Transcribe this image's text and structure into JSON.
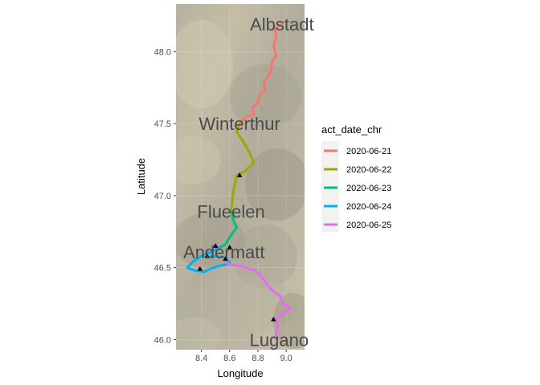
{
  "chart_data": {
    "type": "line",
    "title": "",
    "xlabel": "Longitude",
    "ylabel": "Latitude",
    "xlim": [
      8.22,
      9.13
    ],
    "ylim": [
      45.93,
      48.33
    ],
    "x_ticks": [
      8.4,
      8.6,
      8.8,
      9.0
    ],
    "x_tick_labels": [
      "8.4",
      "8.6",
      "8.8",
      "9.0"
    ],
    "y_ticks": [
      46.0,
      46.5,
      47.0,
      47.5,
      48.0
    ],
    "y_tick_labels": [
      "46.0",
      "46.5",
      "47.0",
      "47.5",
      "48.0"
    ],
    "grid": true,
    "background": "terrain map",
    "legend": {
      "title": "act_date_chr",
      "position": "right"
    },
    "series": [
      {
        "name": "2020-06-21",
        "color": "#F8766D",
        "points": [
          [
            8.97,
            48.19
          ],
          [
            8.92,
            48.16
          ],
          [
            8.93,
            48.1
          ],
          [
            8.91,
            48.04
          ],
          [
            8.93,
            47.97
          ],
          [
            8.9,
            47.93
          ],
          [
            8.89,
            47.86
          ],
          [
            8.87,
            47.82
          ],
          [
            8.84,
            47.79
          ],
          [
            8.85,
            47.73
          ],
          [
            8.81,
            47.7
          ],
          [
            8.8,
            47.64
          ],
          [
            8.76,
            47.61
          ],
          [
            8.77,
            47.56
          ],
          [
            8.72,
            47.55
          ],
          [
            8.67,
            47.5
          ]
        ]
      },
      {
        "name": "2020-06-22",
        "color": "#A3A500",
        "points": [
          [
            8.67,
            47.5
          ],
          [
            8.65,
            47.44
          ],
          [
            8.7,
            47.37
          ],
          [
            8.74,
            47.3
          ],
          [
            8.77,
            47.23
          ],
          [
            8.71,
            47.17
          ],
          [
            8.65,
            47.14
          ],
          [
            8.63,
            47.05
          ],
          [
            8.62,
            46.98
          ],
          [
            8.61,
            46.89
          ]
        ]
      },
      {
        "name": "2020-06-23",
        "color": "#00BF7D",
        "points": [
          [
            8.61,
            46.89
          ],
          [
            8.63,
            46.82
          ],
          [
            8.65,
            46.78
          ],
          [
            8.6,
            46.71
          ],
          [
            8.57,
            46.66
          ],
          [
            8.53,
            46.64
          ]
        ]
      },
      {
        "name": "2020-06-24",
        "color": "#00B0F6",
        "points": [
          [
            8.53,
            46.64
          ],
          [
            8.47,
            46.61
          ],
          [
            8.4,
            46.58
          ],
          [
            8.35,
            46.55
          ],
          [
            8.3,
            46.5
          ],
          [
            8.35,
            46.48
          ],
          [
            8.42,
            46.47
          ],
          [
            8.46,
            46.49
          ],
          [
            8.52,
            46.51
          ],
          [
            8.57,
            46.52
          ],
          [
            8.6,
            46.53
          ],
          [
            8.57,
            46.57
          ],
          [
            8.5,
            46.58
          ],
          [
            8.44,
            46.57
          ]
        ]
      },
      {
        "name": "2020-06-25",
        "color": "#E76BF3",
        "points": [
          [
            8.56,
            46.55
          ],
          [
            8.6,
            46.52
          ],
          [
            8.68,
            46.51
          ],
          [
            8.78,
            46.48
          ],
          [
            8.83,
            46.43
          ],
          [
            8.89,
            46.35
          ],
          [
            8.96,
            46.3
          ],
          [
            8.97,
            46.25
          ],
          [
            9.03,
            46.22
          ],
          [
            8.99,
            46.19
          ],
          [
            8.93,
            46.15
          ],
          [
            8.94,
            46.09
          ],
          [
            8.92,
            46.01
          ]
        ]
      }
    ],
    "markers": [
      [
        8.67,
        47.14
      ],
      [
        8.5,
        46.65
      ],
      [
        8.6,
        46.64
      ],
      [
        8.44,
        46.58
      ],
      [
        8.39,
        46.49
      ],
      [
        8.57,
        46.56
      ],
      [
        8.91,
        46.14
      ]
    ],
    "place_labels": [
      {
        "text": "Albstadt",
        "lon": 8.97,
        "lat": 48.19
      },
      {
        "text": "Winterthur",
        "lon": 8.67,
        "lat": 47.5
      },
      {
        "text": "Flueelen",
        "lon": 8.61,
        "lat": 46.89
      },
      {
        "text": "Andermatt",
        "lon": 8.56,
        "lat": 46.61
      },
      {
        "text": "Lugano",
        "lon": 8.95,
        "lat": 46.0
      }
    ]
  }
}
